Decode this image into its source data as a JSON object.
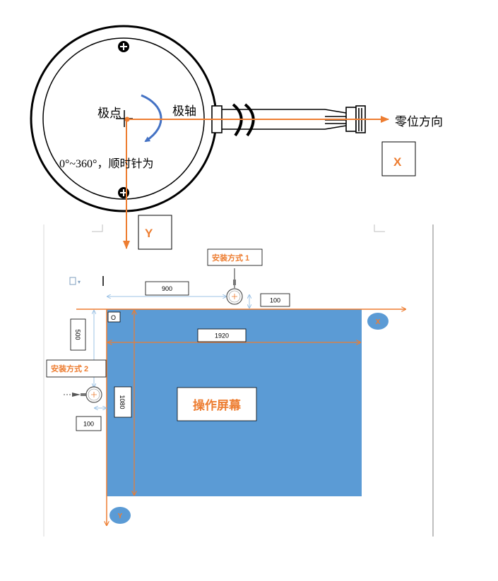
{
  "colors": {
    "orange": "#ED7D31",
    "blue_screen": "#5B9BD5",
    "blue_arrow": "#4472C4",
    "light_blue_dim": "#9DC3E6",
    "black": "#000000",
    "gray_rule": "#BFBFBF"
  },
  "encoder": {
    "pole_label": "极点",
    "axis_label": "极轴",
    "zero_direction_label": "零位方向",
    "angle_range_label": "0°~360°，顺时针为",
    "x_label": "X",
    "y_label": "Y"
  },
  "layout_diagram": {
    "origin_label": "O",
    "install_mode_1": "安装方式 1",
    "install_mode_2": "安装方式 2",
    "dim_900": "900",
    "dim_100_top": "100",
    "dim_1920": "1920",
    "dim_500": "500",
    "dim_1080": "1080",
    "dim_100_left": "100",
    "screen_label": "操作屏幕",
    "x_badge": "X",
    "y_badge": "Y"
  }
}
